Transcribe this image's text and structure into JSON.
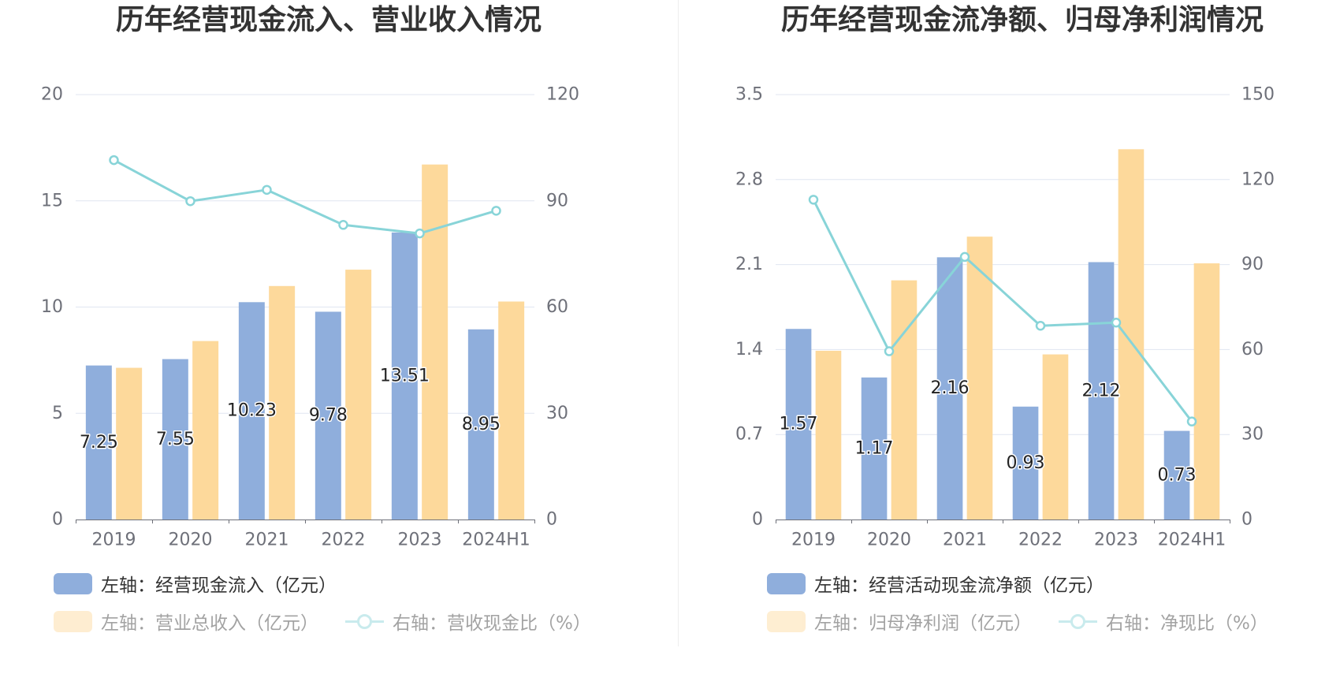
{
  "chart_data": [
    {
      "type": "bar",
      "title": "历年经营现金流入、营业收入情况",
      "categories": [
        "2019",
        "2020",
        "2021",
        "2022",
        "2023",
        "2024H1"
      ],
      "ylim": [
        0,
        20
      ],
      "y2lim": [
        0,
        120
      ],
      "yticks": [
        "0",
        "5",
        "10",
        "15",
        "20"
      ],
      "y2ticks": [
        "0",
        "30",
        "60",
        "90",
        "120"
      ],
      "grid": true,
      "legend_position": "bottom-left",
      "series": [
        {
          "name": "左轴：经营现金流入（亿元）",
          "type": "bar",
          "axis": "left",
          "color": "#8FAEDC",
          "show_labels": true,
          "values": [
            7.25,
            7.55,
            10.23,
            9.78,
            13.51,
            8.95
          ]
        },
        {
          "name": "左轴：营业总收入（亿元）",
          "type": "bar",
          "axis": "left",
          "color": "#FDD99B",
          "values": [
            7.14,
            8.4,
            10.99,
            11.76,
            16.71,
            10.26
          ]
        },
        {
          "name": "右轴：营收现金比（%）",
          "type": "line",
          "axis": "right",
          "color": "#88D4D8",
          "values": [
            101.5,
            89.9,
            93.1,
            83.2,
            80.8,
            87.2
          ]
        }
      ]
    },
    {
      "type": "bar",
      "title": "历年经营现金流净额、归母净利润情况",
      "categories": [
        "2019",
        "2020",
        "2021",
        "2022",
        "2023",
        "2024H1"
      ],
      "ylim": [
        0,
        3.5
      ],
      "y2lim": [
        0,
        150
      ],
      "yticks": [
        "0",
        "0.7",
        "1.4",
        "2.1",
        "2.8",
        "3.5"
      ],
      "y2ticks": [
        "0",
        "30",
        "60",
        "90",
        "120",
        "150"
      ],
      "grid": true,
      "legend_position": "bottom-left",
      "series": [
        {
          "name": "左轴：经营活动现金流净额（亿元）",
          "type": "bar",
          "axis": "left",
          "color": "#8FAEDC",
          "show_labels": true,
          "values": [
            1.57,
            1.17,
            2.16,
            0.93,
            2.12,
            0.73
          ]
        },
        {
          "name": "左轴：归母净利润（亿元）",
          "type": "bar",
          "axis": "left",
          "color": "#FDD99B",
          "values": [
            1.39,
            1.97,
            2.33,
            1.36,
            3.05,
            2.11
          ]
        },
        {
          "name": "右轴：净现比（%）",
          "type": "line",
          "axis": "right",
          "color": "#88D4D8",
          "values": [
            112.9,
            59.4,
            92.7,
            68.4,
            69.5,
            34.6
          ]
        }
      ]
    }
  ]
}
